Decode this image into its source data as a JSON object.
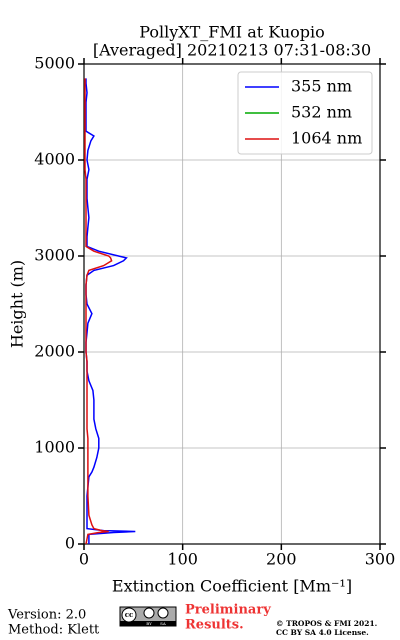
{
  "chart_data": {
    "type": "profile",
    "title": "PollyXT_FMI at Kuopio",
    "subtitle": "[Averaged] 20210213 07:31-08:30",
    "x_label": "Extinction Coefficient [Mm⁻¹]",
    "y_label": "Height (m)",
    "xlim": [
      0,
      300
    ],
    "xticks": [
      0,
      100,
      200,
      300
    ],
    "ylim": [
      0,
      5000
    ],
    "yticks": [
      0,
      1000,
      2000,
      3000,
      4000,
      5000
    ],
    "grid": true,
    "legend": "upper right",
    "heights": [
      0,
      100,
      120,
      130,
      140,
      160,
      200,
      300,
      500,
      700,
      750,
      800,
      900,
      1000,
      1100,
      1200,
      1300,
      1400,
      1500,
      1600,
      1700,
      1800,
      1900,
      2000,
      2100,
      2200,
      2300,
      2400,
      2500,
      2600,
      2700,
      2800,
      2850,
      2900,
      2950,
      2980,
      3000,
      3050,
      3100,
      3200,
      3300,
      3400,
      3500,
      3600,
      3700,
      3800,
      3900,
      4000,
      4100,
      4200,
      4250,
      4300,
      4400,
      4500,
      4600,
      4700,
      4800,
      4850
    ],
    "series": [
      {
        "name": "355 nm",
        "color": "#0000ff",
        "values": [
          5,
          5,
          30,
          52,
          20,
          3,
          3,
          3,
          3,
          5,
          8,
          10,
          13,
          15,
          15,
          12,
          10,
          10,
          10,
          9,
          5,
          3,
          3,
          2,
          2,
          3,
          4,
          8,
          3,
          2,
          2,
          3,
          10,
          30,
          40,
          43,
          35,
          15,
          3,
          3,
          4,
          5,
          4,
          3,
          3,
          3,
          5,
          3,
          4,
          7,
          10,
          2,
          2,
          2,
          2,
          3,
          2,
          2
        ]
      },
      {
        "name": "532 nm",
        "color": "#00aa00",
        "values": [
          null,
          null,
          null,
          null,
          null,
          null,
          null,
          null,
          null,
          null,
          null,
          null,
          null,
          null,
          null,
          null,
          null,
          null,
          null,
          null,
          null,
          null,
          null,
          null,
          null,
          null,
          null,
          null,
          null,
          null,
          null,
          null,
          null,
          null,
          null,
          null,
          null,
          null,
          null,
          null,
          null,
          null,
          null,
          null,
          null,
          null,
          null,
          null,
          null,
          null,
          null,
          null,
          null,
          null,
          null,
          null,
          null,
          null
        ]
      },
      {
        "name": "1064 nm",
        "color": "#dd1111",
        "values": [
          2,
          4,
          15,
          25,
          18,
          10,
          8,
          5,
          4,
          4,
          4,
          4,
          4,
          4,
          4,
          3,
          3,
          3,
          3,
          3,
          3,
          3,
          3,
          2,
          2,
          2,
          2,
          2,
          2,
          2,
          2,
          3,
          5,
          20,
          28,
          27,
          25,
          10,
          2,
          2,
          2,
          2,
          2,
          2,
          2,
          2,
          1,
          1,
          1,
          1,
          1,
          1,
          1,
          1,
          1,
          1,
          1,
          1
        ]
      }
    ]
  },
  "footer": {
    "version": "Version: 2.0",
    "method": "Method: Klett",
    "badge": [
      "cc",
      "BY",
      "SA"
    ],
    "preliminary": [
      "Preliminary",
      "Results."
    ],
    "copyright": [
      "© TROPOS & FMI 2021.",
      "CC BY SA 4.0 License."
    ]
  }
}
